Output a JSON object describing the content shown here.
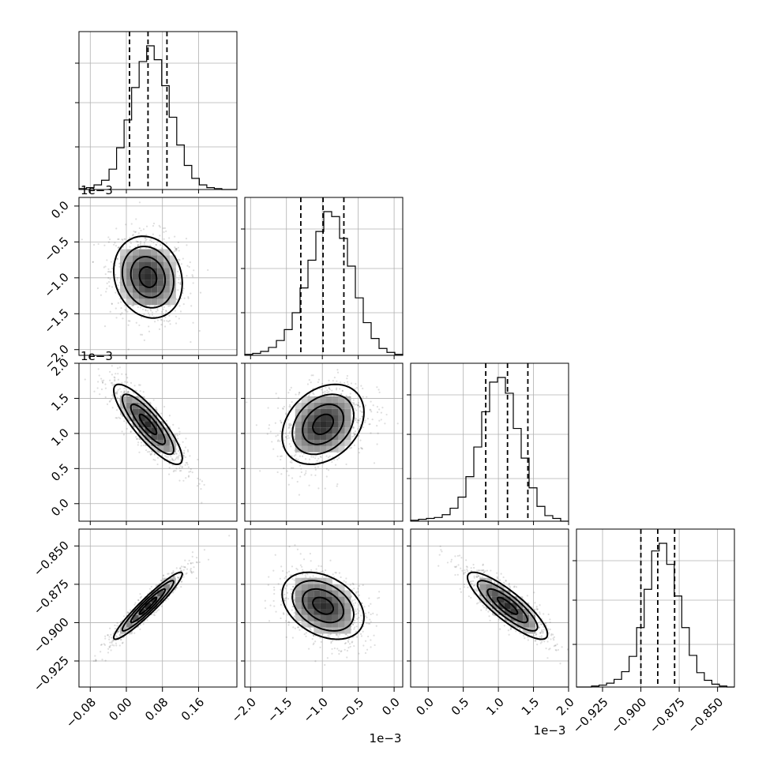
{
  "chart_data": {
    "type": "corner",
    "parameters": 4,
    "axes": [
      {
        "range": [
          -0.105,
          0.245
        ],
        "ticks": [
          -0.08,
          0.0,
          0.08,
          0.16
        ],
        "tick_labels": [
          "−0.08",
          "0.00",
          "0.08",
          "0.16"
        ],
        "offset_label": ""
      },
      {
        "range": [
          -2.08,
          0.12
        ],
        "ticks": [
          -2.0,
          -1.5,
          -1.0,
          -0.5,
          0.0
        ],
        "tick_labels": [
          "−2.0",
          "−1.5",
          "−1.0",
          "−0.5",
          "0.0"
        ],
        "offset_label": "1e−3"
      },
      {
        "range": [
          -0.25,
          2.0
        ],
        "ticks": [
          0.0,
          0.5,
          1.0,
          1.5,
          2.0
        ],
        "tick_labels": [
          "0.0",
          "0.5",
          "1.0",
          "1.5",
          "2.0"
        ],
        "offset_label": "1e−3"
      },
      {
        "range": [
          -0.942,
          -0.839
        ],
        "ticks": [
          -0.925,
          -0.9,
          -0.875,
          -0.85
        ],
        "tick_labels": [
          "−0.925",
          "−0.900",
          "−0.875",
          "−0.850"
        ],
        "offset_label": ""
      }
    ],
    "histograms": [
      {
        "param": 0,
        "quantiles": [
          0.007,
          0.048,
          0.09
        ],
        "counts": [
          1,
          2,
          5,
          10,
          22,
          45,
          75,
          110,
          138,
          155,
          140,
          112,
          78,
          48,
          26,
          12,
          5,
          2,
          1,
          0,
          0
        ]
      },
      {
        "param": 1,
        "quantiles": [
          -1.3,
          -0.99,
          -0.7
        ],
        "counts": [
          1,
          2,
          4,
          8,
          15,
          26,
          43,
          68,
          96,
          125,
          145,
          140,
          118,
          90,
          58,
          33,
          17,
          7,
          3,
          1
        ]
      },
      {
        "param": 2,
        "quantiles": [
          0.82,
          1.13,
          1.42
        ],
        "counts": [
          1,
          2,
          3,
          4,
          7,
          14,
          26,
          48,
          80,
          118,
          150,
          155,
          138,
          100,
          68,
          36,
          16,
          6,
          3,
          0
        ]
      },
      {
        "param": 3,
        "quantiles": [
          -0.9,
          -0.889,
          -0.878
        ],
        "counts": [
          0,
          0,
          1,
          2,
          4,
          8,
          16,
          32,
          62,
          102,
          142,
          150,
          128,
          95,
          62,
          33,
          15,
          7,
          3,
          1,
          0
        ]
      }
    ],
    "pairs": [
      {
        "x": 0,
        "y": 1,
        "mean": [
          0.048,
          -0.99
        ],
        "sd": [
          0.04,
          0.3
        ],
        "rho": -0.15
      },
      {
        "x": 0,
        "y": 2,
        "mean": [
          0.048,
          1.13
        ],
        "sd": [
          0.04,
          0.3
        ],
        "rho": -0.85
      },
      {
        "x": 1,
        "y": 2,
        "mean": [
          -0.99,
          1.13
        ],
        "sd": [
          0.3,
          0.3
        ],
        "rho": 0.3
      },
      {
        "x": 0,
        "y": 3,
        "mean": [
          0.048,
          -0.889
        ],
        "sd": [
          0.04,
          0.0115
        ],
        "rho": 0.95
      },
      {
        "x": 1,
        "y": 3,
        "mean": [
          -0.99,
          -0.889
        ],
        "sd": [
          0.3,
          0.0115
        ],
        "rho": -0.35
      },
      {
        "x": 2,
        "y": 3,
        "mean": [
          1.13,
          -0.889
        ],
        "sd": [
          0.3,
          0.0115
        ],
        "rho": -0.85
      }
    ],
    "grid": true,
    "contour_levels": [
      0.5,
      1.0,
      1.5,
      2.0
    ]
  }
}
